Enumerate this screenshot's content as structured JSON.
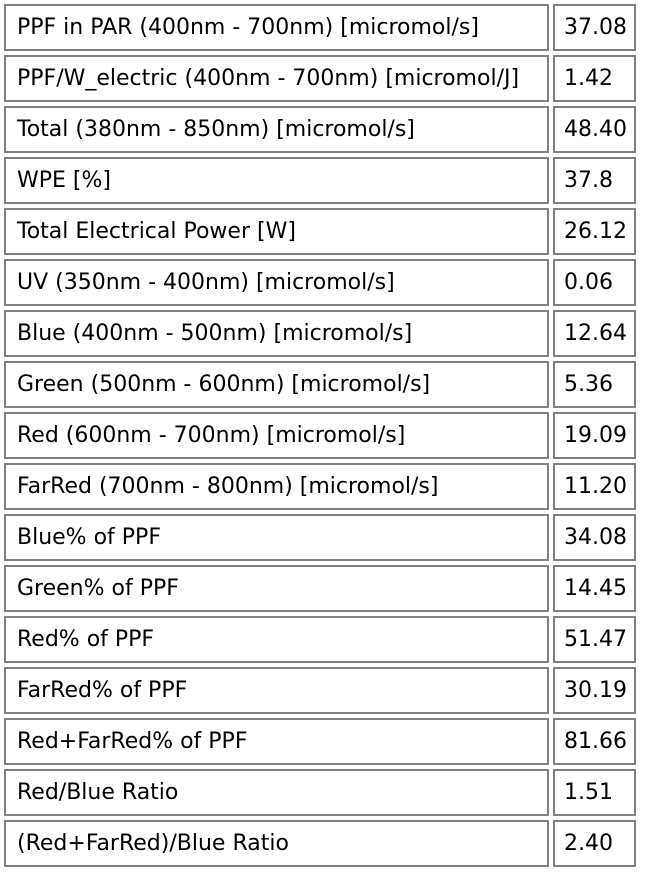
{
  "rows": [
    {
      "label": "PPF in PAR (400nm - 700nm) [micromol/s]",
      "value": "37.08"
    },
    {
      "label": "PPF/W_electric (400nm - 700nm) [micromol/J]",
      "value": "1.42"
    },
    {
      "label": "Total (380nm - 850nm) [micromol/s]",
      "value": "48.40"
    },
    {
      "label": "WPE [%]",
      "value": "37.8"
    },
    {
      "label": "Total Electrical Power [W]",
      "value": "26.12"
    },
    {
      "label": "UV (350nm - 400nm) [micromol/s]",
      "value": "0.06"
    },
    {
      "label": "Blue (400nm - 500nm) [micromol/s]",
      "value": "12.64"
    },
    {
      "label": "Green (500nm - 600nm) [micromol/s]",
      "value": "5.36"
    },
    {
      "label": "Red (600nm - 700nm) [micromol/s]",
      "value": "19.09"
    },
    {
      "label": "FarRed (700nm - 800nm) [micromol/s]",
      "value": "11.20"
    },
    {
      "label": "Blue% of PPF",
      "value": "34.08"
    },
    {
      "label": "Green% of PPF",
      "value": "14.45"
    },
    {
      "label": "Red% of PPF",
      "value": "51.47"
    },
    {
      "label": "FarRed% of PPF",
      "value": "30.19"
    },
    {
      "label": "Red+FarRed% of PPF",
      "value": "81.66"
    },
    {
      "label": "Red/Blue Ratio",
      "value": "1.51"
    },
    {
      "label": "(Red+FarRed)/Blue Ratio",
      "value": "2.40"
    }
  ]
}
